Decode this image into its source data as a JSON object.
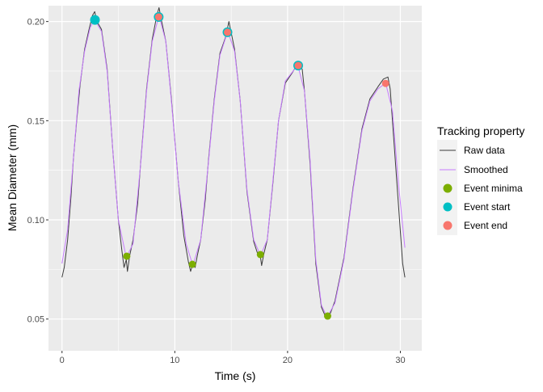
{
  "chart_data": {
    "type": "line",
    "xlabel": "Time (s)",
    "ylabel": "Mean Diameter (mm)",
    "xlim": [
      -1.2,
      31.9
    ],
    "ylim": [
      0.034,
      0.208
    ],
    "x_ticks": [
      0,
      10,
      20,
      30
    ],
    "x_tick_labels": [
      "0",
      "10",
      "20",
      "30"
    ],
    "y_ticks": [
      0.05,
      0.1,
      0.15,
      0.2
    ],
    "y_tick_labels": [
      "0.05",
      "0.10",
      "0.15",
      "0.20"
    ],
    "grid": true,
    "legend": {
      "title": "Tracking property",
      "placement": "right",
      "entries": [
        {
          "label": "Raw data",
          "kind": "line",
          "color": "#3c3c3c"
        },
        {
          "label": "Smoothed",
          "kind": "line",
          "color": "#C77CFF"
        },
        {
          "label": "Event minima",
          "kind": "point",
          "color": "#7CAE00"
        },
        {
          "label": "Event start",
          "kind": "point",
          "color": "#00BFC4"
        },
        {
          "label": "Event end",
          "kind": "point",
          "color": "#F8766D"
        }
      ]
    },
    "series": [
      {
        "name": "Raw data",
        "color": "#3c3c3c",
        "x": [
          0,
          0.2,
          0.5,
          0.8,
          1.0,
          1.3,
          1.6,
          2.0,
          2.4,
          2.7,
          2.9,
          3.1,
          3.5,
          4.0,
          4.5,
          5.0,
          5.3,
          5.5,
          5.7,
          5.8,
          6.0,
          6.3,
          6.7,
          7.0,
          7.5,
          8.0,
          8.4,
          8.6,
          8.8,
          9.2,
          9.7,
          10.3,
          10.8,
          11.2,
          11.4,
          11.6,
          11.8,
          12.0,
          12.3,
          12.7,
          13.0,
          13.5,
          14.0,
          14.5,
          14.8,
          15.3,
          15.8,
          16.4,
          17.0,
          17.4,
          17.6,
          17.7,
          17.9,
          18.2,
          18.7,
          19.2,
          19.8,
          20.4,
          20.9,
          21.3,
          21.5,
          22.0,
          22.5,
          23.0,
          23.3,
          23.5,
          23.8,
          24.2,
          25.0,
          25.8,
          26.6,
          27.3,
          28.0,
          28.5,
          28.9,
          29.1,
          29.3,
          29.8,
          30.2,
          30.4
        ],
        "y": [
          0.071,
          0.076,
          0.09,
          0.112,
          0.13,
          0.15,
          0.168,
          0.186,
          0.196,
          0.203,
          0.205,
          0.2,
          0.196,
          0.176,
          0.135,
          0.1,
          0.085,
          0.076,
          0.08,
          0.074,
          0.082,
          0.09,
          0.108,
          0.131,
          0.166,
          0.191,
          0.203,
          0.207,
          0.201,
          0.19,
          0.161,
          0.12,
          0.092,
          0.079,
          0.074,
          0.078,
          0.076,
          0.082,
          0.09,
          0.11,
          0.131,
          0.161,
          0.184,
          0.192,
          0.2,
          0.186,
          0.16,
          0.114,
          0.089,
          0.082,
          0.081,
          0.077,
          0.083,
          0.09,
          0.119,
          0.15,
          0.169,
          0.174,
          0.179,
          0.176,
          0.165,
          0.128,
          0.078,
          0.056,
          0.052,
          0.05,
          0.053,
          0.059,
          0.081,
          0.116,
          0.146,
          0.161,
          0.167,
          0.171,
          0.172,
          0.166,
          0.15,
          0.11,
          0.078,
          0.071
        ]
      },
      {
        "name": "Smoothed",
        "color": "#C77CFF",
        "x": [
          0,
          0.5,
          1.0,
          1.5,
          2.0,
          2.5,
          2.9,
          3.5,
          4.0,
          4.5,
          5.0,
          5.7,
          6.3,
          7.0,
          7.5,
          8.0,
          8.6,
          9.2,
          9.7,
          10.3,
          11.0,
          11.6,
          12.3,
          13.0,
          13.5,
          14.0,
          14.7,
          15.3,
          15.8,
          16.4,
          17.0,
          17.6,
          18.2,
          18.7,
          19.2,
          19.8,
          20.9,
          21.5,
          22.0,
          22.5,
          23.0,
          23.5,
          24.2,
          25.0,
          25.8,
          26.6,
          27.3,
          28.0,
          28.7,
          29.3,
          29.8,
          30.4
        ],
        "y": [
          0.078,
          0.095,
          0.13,
          0.165,
          0.185,
          0.197,
          0.201,
          0.195,
          0.175,
          0.135,
          0.1,
          0.081,
          0.088,
          0.13,
          0.165,
          0.19,
          0.203,
          0.19,
          0.16,
          0.12,
          0.088,
          0.077,
          0.09,
          0.13,
          0.16,
          0.183,
          0.195,
          0.185,
          0.16,
          0.115,
          0.09,
          0.082,
          0.09,
          0.12,
          0.15,
          0.17,
          0.178,
          0.165,
          0.13,
          0.08,
          0.057,
          0.051,
          0.058,
          0.08,
          0.115,
          0.145,
          0.16,
          0.166,
          0.169,
          0.155,
          0.12,
          0.086
        ]
      }
    ],
    "points": {
      "Event minima": {
        "color": "#7CAE00",
        "x": [
          5.74,
          11.56,
          17.59,
          23.55
        ],
        "y": [
          0.0817,
          0.0776,
          0.0825,
          0.0515
        ]
      },
      "Event start": {
        "color": "#00BFC4",
        "x": [
          2.92,
          8.57,
          14.67,
          20.94
        ],
        "y": [
          0.2008,
          0.2023,
          0.1946,
          0.1778
        ]
      },
      "Event end": {
        "color": "#F8766D",
        "x": [
          8.57,
          14.67,
          20.94,
          28.69
        ],
        "y": [
          0.2023,
          0.1946,
          0.1778,
          0.1688
        ]
      }
    }
  }
}
